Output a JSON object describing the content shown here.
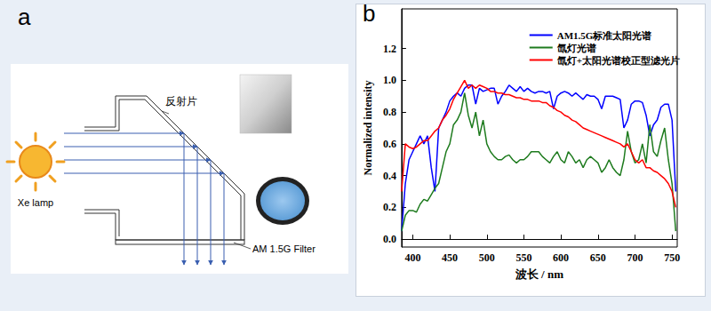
{
  "panels": {
    "a": {
      "label": "a",
      "reflector": "反射片",
      "lamp": "Xe lamp",
      "filter": "AM 1.5G Filter"
    },
    "b": {
      "label": "b"
    }
  },
  "chart_data": {
    "type": "line",
    "x_label": "波长 / nm",
    "y_label": "Normalized intensity",
    "xlim": [
      385,
      757
    ],
    "xticks": [
      400,
      450,
      500,
      550,
      600,
      650,
      700,
      750
    ],
    "ylim": [
      -0.05,
      1.45
    ],
    "yticks": [
      {
        "value": 0,
        "label": "0.0"
      },
      {
        "value": 0.2,
        "label": "0.2"
      },
      {
        "value": 0.4,
        "label": "0.4"
      },
      {
        "value": 0.6,
        "label": "0.6"
      },
      {
        "value": 0.8,
        "label": "0.8"
      },
      {
        "value": 1.0,
        "label": "1.0"
      },
      {
        "value": 1.2,
        "label": "1.2"
      }
    ],
    "grid": false,
    "legend": "upper right",
    "marker": "none",
    "x": [
      385,
      390,
      395,
      400,
      405,
      410,
      415,
      420,
      425,
      430,
      435,
      440,
      445,
      450,
      455,
      460,
      465,
      470,
      475,
      480,
      485,
      490,
      495,
      500,
      505,
      510,
      515,
      520,
      525,
      530,
      535,
      540,
      545,
      550,
      555,
      560,
      565,
      570,
      575,
      580,
      585,
      590,
      595,
      600,
      605,
      610,
      615,
      620,
      625,
      630,
      635,
      640,
      645,
      650,
      655,
      660,
      665,
      670,
      675,
      680,
      685,
      690,
      695,
      700,
      705,
      710,
      715,
      720,
      725,
      730,
      735,
      740,
      745,
      750,
      755
    ],
    "series": [
      {
        "name": "AM1.5G标准太阳光谱",
        "color": "#0000ff",
        "values": [
          0.05,
          0.35,
          0.5,
          0.55,
          0.6,
          0.65,
          0.6,
          0.65,
          0.45,
          0.3,
          0.7,
          0.75,
          0.8,
          0.87,
          0.9,
          0.92,
          0.9,
          0.95,
          0.97,
          0.97,
          0.85,
          0.95,
          0.93,
          0.94,
          0.95,
          0.95,
          0.85,
          0.9,
          0.93,
          0.97,
          0.95,
          0.93,
          0.96,
          0.93,
          0.95,
          0.93,
          0.92,
          0.93,
          0.93,
          0.92,
          0.93,
          0.82,
          0.9,
          0.92,
          0.93,
          0.92,
          0.9,
          0.92,
          0.9,
          0.88,
          0.91,
          0.9,
          0.9,
          0.88,
          0.82,
          0.9,
          0.9,
          0.9,
          0.89,
          0.88,
          0.7,
          0.75,
          0.85,
          0.87,
          0.87,
          0.86,
          0.78,
          0.65,
          0.72,
          0.75,
          0.83,
          0.85,
          0.85,
          0.75,
          0.3
        ]
      },
      {
        "name": "氙灯光谱",
        "color": "#1e7b1e",
        "values": [
          0.05,
          0.15,
          0.18,
          0.18,
          0.17,
          0.22,
          0.25,
          0.24,
          0.28,
          0.32,
          0.35,
          0.45,
          0.55,
          0.6,
          0.72,
          0.75,
          0.8,
          0.92,
          0.78,
          0.7,
          0.8,
          0.65,
          0.75,
          0.6,
          0.55,
          0.52,
          0.5,
          0.5,
          0.52,
          0.53,
          0.5,
          0.48,
          0.5,
          0.5,
          0.52,
          0.55,
          0.55,
          0.55,
          0.52,
          0.5,
          0.48,
          0.52,
          0.55,
          0.5,
          0.48,
          0.55,
          0.52,
          0.48,
          0.5,
          0.45,
          0.5,
          0.52,
          0.5,
          0.48,
          0.42,
          0.45,
          0.5,
          0.45,
          0.42,
          0.4,
          0.5,
          0.68,
          0.55,
          0.48,
          0.5,
          0.6,
          0.48,
          0.72,
          0.55,
          0.52,
          0.62,
          0.7,
          0.5,
          0.35,
          0.05
        ]
      },
      {
        "name": "氙灯+太阳光谱校正型滤光片",
        "color": "#ff0000",
        "values": [
          0.3,
          0.6,
          0.58,
          0.57,
          0.58,
          0.6,
          0.62,
          0.62,
          0.65,
          0.68,
          0.7,
          0.75,
          0.78,
          0.82,
          0.88,
          0.92,
          0.96,
          1.0,
          0.95,
          0.97,
          0.95,
          0.97,
          0.96,
          0.95,
          0.93,
          0.93,
          0.92,
          0.92,
          0.91,
          0.91,
          0.9,
          0.89,
          0.89,
          0.88,
          0.88,
          0.87,
          0.87,
          0.87,
          0.86,
          0.86,
          0.84,
          0.83,
          0.81,
          0.8,
          0.78,
          0.77,
          0.75,
          0.74,
          0.72,
          0.7,
          0.69,
          0.68,
          0.67,
          0.66,
          0.65,
          0.64,
          0.63,
          0.62,
          0.61,
          0.6,
          0.58,
          0.6,
          0.55,
          0.5,
          0.48,
          0.5,
          0.45,
          0.45,
          0.43,
          0.42,
          0.4,
          0.38,
          0.35,
          0.3,
          0.2
        ]
      }
    ]
  }
}
